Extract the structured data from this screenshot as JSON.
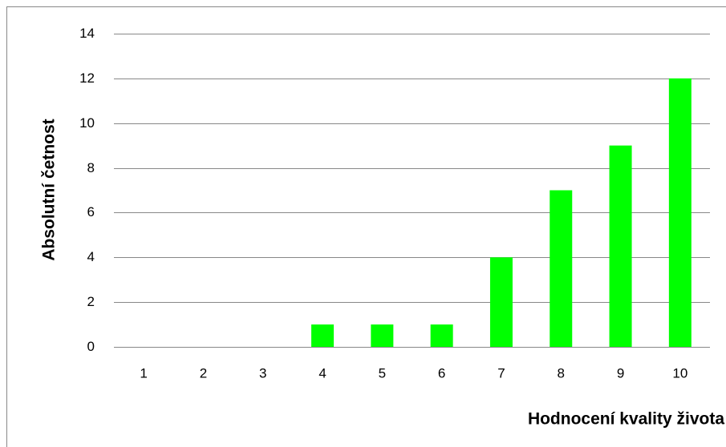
{
  "chart_data": {
    "type": "bar",
    "x_label": "Hodnocení kvality života",
    "y_label": "Absolutní četnost",
    "categories": [
      "1",
      "2",
      "3",
      "4",
      "5",
      "6",
      "7",
      "8",
      "9",
      "10"
    ],
    "values": [
      0,
      0,
      0,
      1,
      1,
      1,
      4,
      7,
      9,
      12
    ],
    "color": "#00ff00",
    "ylim": [
      0,
      14
    ],
    "yticks": [
      0,
      2,
      4,
      6,
      8,
      10,
      12,
      14
    ],
    "grid": true
  }
}
